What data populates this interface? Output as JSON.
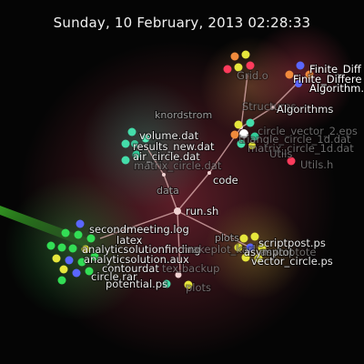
{
  "header": {
    "datetime": "Sunday, 10 February, 2013 02:28:33"
  },
  "colors": {
    "background": "#050505",
    "edge": "#e5b6b6",
    "beam": "#3fbf2a",
    "directory_node": "#f0d2d2",
    "file_green": "#33dd55",
    "file_cyan": "#44ddaa",
    "file_yellow": "#e6e63c",
    "file_blue": "#5a66ff",
    "file_orange": "#f08a3c",
    "file_red": "#ff3b5c",
    "file_white": "#ffffff"
  },
  "directories": {
    "data": "data",
    "knordstrom": "knordstrom",
    "code": "code",
    "structures": "Structures",
    "algorithms": "Algorithms",
    "utils": "Utils",
    "plots": "plots",
    "latex": "latex"
  },
  "files": {
    "run_sh": "run.sh",
    "volume_dat": "volume.dat",
    "results_new_dat": "results_new.dat",
    "air_circle_dat": "air_circle.dat",
    "matrix_circle_dat": "matrix_circle.dat",
    "grid_o": "Grid.o",
    "finite_diff": "Finite_Diff",
    "finite_differe": "Finite_Differe",
    "algorithm_h": "Algorithm.h",
    "circle_vector_2_eps": "circle_vector_2.eps",
    "triangle_circle_1d_dat": "triangle_circle_1d.dat",
    "matrix_circle_1d_dat": "matrix_circle_1d.dat",
    "utils_h": "Utils.h",
    "secondmeeting_log": "secondmeeting.log",
    "analyticsolutionfinding": "analyticsolutionfinding",
    "analyticsolution_aux": "analyticsolution.aux",
    "contourdat": "contourdat",
    "potential_ps": "potential.ps",
    "circle_rar": "circle.rar",
    "tex_backup": "tex.backup",
    "makeplot_karl": "makeplot_karl",
    "scriptpost_ps": "scriptpost.ps",
    "asymptot": "asymptot",
    "asymptote": "asymptote",
    "vector_circle_ps": "vector_circle.ps",
    "plots_ghost": "plots"
  }
}
